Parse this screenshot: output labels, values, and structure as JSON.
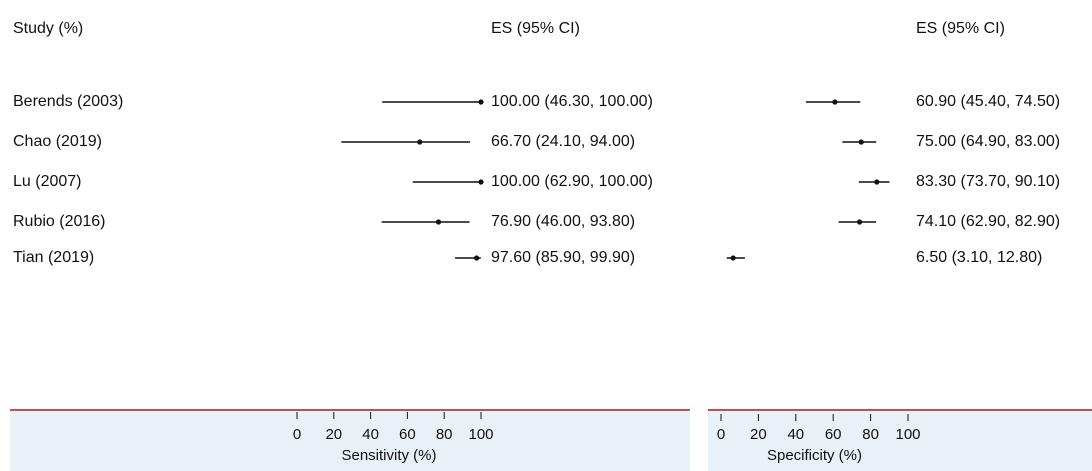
{
  "headers": {
    "study": "Study (%)",
    "es_sens": "ES (95% CI)",
    "es_spec": "ES (95% CI)"
  },
  "colors": {
    "band": "#e8f1f5",
    "band_border": "#c0504d",
    "marks": "#111111"
  },
  "chart_data": {
    "type": "forest",
    "categories": [
      "Berends (2003)",
      "Chao (2019)",
      "Lu (2007)",
      "Rubio (2016)",
      "Tian (2019)"
    ],
    "panels": [
      {
        "axis_title": "Sensitivity (%)",
        "ticks": [
          "0",
          "20",
          "40",
          "60",
          "80",
          "100"
        ],
        "xlim": [
          0,
          100
        ],
        "estimates": [
          100.0,
          66.7,
          100.0,
          76.9,
          97.6
        ],
        "lower": [
          46.3,
          24.1,
          62.9,
          46.0,
          85.9
        ],
        "upper": [
          100.0,
          94.0,
          100.0,
          93.8,
          99.9
        ],
        "labels": [
          "100.00 (46.30, 100.00)",
          "66.70 (24.10, 94.00)",
          "100.00 (62.90, 100.00)",
          "76.90 (46.00, 93.80)",
          "97.60 (85.90, 99.90)"
        ]
      },
      {
        "axis_title": "Specificity (%)",
        "ticks": [
          "0",
          "20",
          "40",
          "60",
          "80",
          "100"
        ],
        "xlim": [
          0,
          100
        ],
        "estimates": [
          60.9,
          75.0,
          83.3,
          74.1,
          6.5
        ],
        "lower": [
          45.4,
          64.9,
          73.7,
          62.9,
          3.1
        ],
        "upper": [
          74.5,
          83.0,
          90.1,
          82.9,
          12.8
        ],
        "labels": [
          "60.90 (45.40, 74.50)",
          "75.00 (64.90, 83.00)",
          "83.30 (73.70, 90.10)",
          "74.10 (62.90, 82.90)",
          "6.50 (3.10, 12.80)"
        ]
      }
    ]
  }
}
